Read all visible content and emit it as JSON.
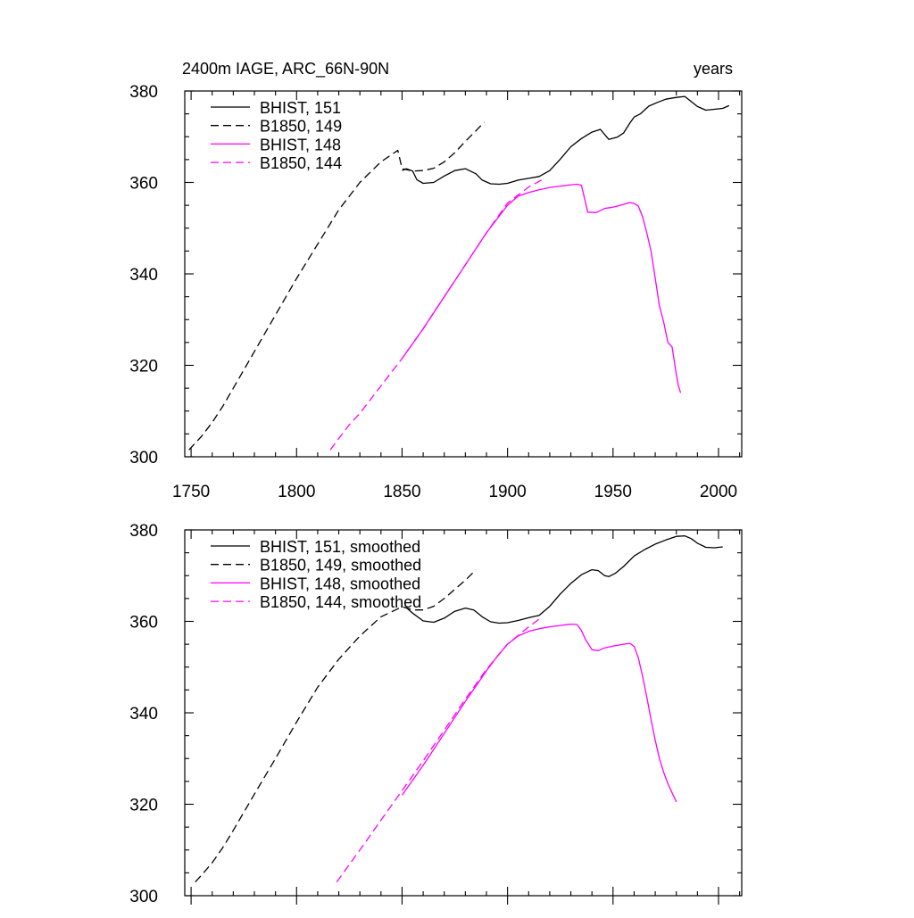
{
  "chart_data": [
    {
      "type": "line",
      "title_left": "2400m IAGE, ARC_66N-90N",
      "title_right": "years",
      "xlim": [
        1747,
        2011
      ],
      "ylim": [
        300,
        380
      ],
      "x_ticks": [
        1750,
        1800,
        1850,
        1900,
        1950,
        2000
      ],
      "x_tick_labels": [
        "1750",
        "1800",
        "1850",
        "1900",
        "1950",
        "2000"
      ],
      "y_ticks": [
        300,
        320,
        340,
        360,
        380
      ],
      "y_tick_labels": [
        "300",
        "320",
        "340",
        "360",
        "380"
      ],
      "legend_position": "top-left",
      "series": [
        {
          "name": "BHIST, 151",
          "color": "#000000",
          "dash": "solid",
          "x": [
            1850,
            1852,
            1855,
            1857,
            1860,
            1865,
            1870,
            1875,
            1880,
            1885,
            1888,
            1892,
            1896,
            1900,
            1905,
            1910,
            1915,
            1920,
            1925,
            1930,
            1935,
            1940,
            1944,
            1948,
            1952,
            1955,
            1958,
            1960,
            1963,
            1967,
            1971,
            1975,
            1980,
            1984,
            1987,
            1990,
            1994,
            1998,
            2002,
            2005
          ],
          "values": [
            362.6,
            363.0,
            362.5,
            360.6,
            359.8,
            360.0,
            361.4,
            362.6,
            363.0,
            361.9,
            360.5,
            359.7,
            359.6,
            359.8,
            360.5,
            360.9,
            361.3,
            362.6,
            365.1,
            367.8,
            369.6,
            371.0,
            371.6,
            369.4,
            369.9,
            370.8,
            373.0,
            374.3,
            375.0,
            376.7,
            377.5,
            378.2,
            378.6,
            378.8,
            377.7,
            376.6,
            375.8,
            376.0,
            376.2,
            376.8
          ]
        },
        {
          "name": "B1850, 149",
          "color": "#000000",
          "dash": "dashed",
          "x": [
            1749,
            1755,
            1760,
            1765,
            1770,
            1780,
            1790,
            1800,
            1810,
            1820,
            1830,
            1840,
            1848,
            1850,
            1855,
            1860,
            1865,
            1870,
            1875,
            1880,
            1885,
            1889
          ],
          "values": [
            301.5,
            304.5,
            307.5,
            311.0,
            315.0,
            323.0,
            331.0,
            339.0,
            346.5,
            354.0,
            360.0,
            364.5,
            367.0,
            363.0,
            362.5,
            362.6,
            363.1,
            364.5,
            366.5,
            369.0,
            371.3,
            373.2
          ]
        },
        {
          "name": "BHIST, 148",
          "color": "#ff00ff",
          "dash": "solid",
          "x": [
            1850,
            1860,
            1870,
            1880,
            1890,
            1895,
            1900,
            1905,
            1910,
            1915,
            1920,
            1925,
            1930,
            1933,
            1935,
            1936,
            1938,
            1942,
            1946,
            1950,
            1955,
            1958,
            1960,
            1962,
            1964,
            1966,
            1968,
            1970,
            1972,
            1974,
            1976,
            1977,
            1978,
            1979,
            1980,
            1981,
            1982
          ],
          "values": [
            321.5,
            328.0,
            335.0,
            342.0,
            349.0,
            352.0,
            355.0,
            357.0,
            357.8,
            358.4,
            358.9,
            359.2,
            359.5,
            359.6,
            359.4,
            357.5,
            353.5,
            353.4,
            354.3,
            354.6,
            355.2,
            355.6,
            355.4,
            354.8,
            352.5,
            349.0,
            345.0,
            339.0,
            333.0,
            329.5,
            325.0,
            324.5,
            324.0,
            321.0,
            318.0,
            315.5,
            314.0
          ]
        },
        {
          "name": "B1850, 144",
          "color": "#ff00ff",
          "dash": "dashed",
          "x": [
            1816,
            1820,
            1825,
            1830,
            1835,
            1840,
            1850,
            1860,
            1870,
            1880,
            1890,
            1900,
            1910,
            1918
          ],
          "values": [
            301.5,
            304.0,
            307.0,
            309.5,
            312.5,
            315.5,
            321.5,
            328.0,
            335.0,
            342.0,
            349.0,
            355.5,
            359.0,
            361.0
          ]
        }
      ]
    },
    {
      "type": "line",
      "xlim": [
        1747,
        2011
      ],
      "ylim": [
        300,
        380
      ],
      "x_ticks": [
        1750,
        1800,
        1850,
        1900,
        1950,
        2000
      ],
      "y_ticks": [
        300,
        320,
        340,
        360,
        380
      ],
      "y_tick_labels": [
        "300",
        "320",
        "340",
        "360",
        "380"
      ],
      "legend_position": "top-left",
      "series": [
        {
          "name": "BHIST, 151, smoothed",
          "color": "#000000",
          "dash": "solid",
          "x": [
            1852,
            1855,
            1860,
            1865,
            1870,
            1875,
            1880,
            1884,
            1888,
            1892,
            1896,
            1900,
            1905,
            1910,
            1915,
            1920,
            1925,
            1930,
            1935,
            1940,
            1943,
            1946,
            1948,
            1951,
            1955,
            1960,
            1965,
            1970,
            1975,
            1980,
            1984,
            1987,
            1990,
            1994,
            1998,
            2002
          ],
          "values": [
            363.0,
            361.8,
            360.1,
            359.8,
            360.7,
            362.2,
            362.9,
            362.5,
            361.0,
            359.9,
            359.6,
            359.7,
            360.2,
            360.8,
            361.3,
            363.3,
            366.0,
            368.3,
            370.2,
            371.3,
            371.1,
            370.0,
            369.8,
            370.5,
            372.0,
            374.3,
            375.7,
            376.9,
            377.8,
            378.6,
            378.7,
            378.1,
            377.1,
            376.2,
            376.1,
            376.3
          ]
        },
        {
          "name": "B1850, 149, smoothed",
          "color": "#000000",
          "dash": "dashed",
          "x": [
            1752,
            1755,
            1760,
            1765,
            1770,
            1780,
            1790,
            1800,
            1810,
            1820,
            1830,
            1840,
            1850,
            1855,
            1860,
            1865,
            1870,
            1875,
            1880,
            1885
          ],
          "values": [
            303.0,
            304.5,
            307.2,
            310.5,
            314.3,
            322.2,
            330.0,
            338.0,
            345.6,
            351.7,
            356.8,
            361.0,
            363.2,
            362.5,
            362.5,
            363.3,
            365.0,
            367.0,
            369.0,
            371.3
          ]
        },
        {
          "name": "BHIST, 148, smoothed",
          "color": "#ff00ff",
          "dash": "solid",
          "x": [
            1850,
            1860,
            1870,
            1880,
            1890,
            1895,
            1900,
            1905,
            1910,
            1915,
            1920,
            1925,
            1930,
            1933,
            1935,
            1937,
            1940,
            1943,
            1946,
            1950,
            1955,
            1958,
            1960,
            1962,
            1964,
            1966,
            1968,
            1970,
            1972,
            1974,
            1976,
            1978,
            1980
          ],
          "values": [
            322.0,
            328.5,
            335.5,
            342.5,
            349.2,
            352.3,
            355.0,
            356.8,
            357.8,
            358.4,
            358.8,
            359.1,
            359.4,
            359.3,
            358.0,
            356.0,
            353.8,
            353.6,
            354.2,
            354.6,
            355.0,
            355.2,
            354.5,
            352.0,
            348.0,
            343.5,
            338.5,
            334.0,
            330.0,
            327.0,
            324.5,
            322.5,
            320.5
          ]
        },
        {
          "name": "B1850, 144, smoothed",
          "color": "#ff00ff",
          "dash": "dashed",
          "x": [
            1819,
            1825,
            1830,
            1840,
            1850,
            1860,
            1870,
            1880,
            1890,
            1900,
            1910,
            1915
          ],
          "values": [
            303.0,
            306.8,
            310.0,
            316.5,
            323.0,
            329.5,
            336.2,
            343.0,
            349.5,
            355.0,
            358.8,
            360.5
          ]
        }
      ]
    }
  ]
}
